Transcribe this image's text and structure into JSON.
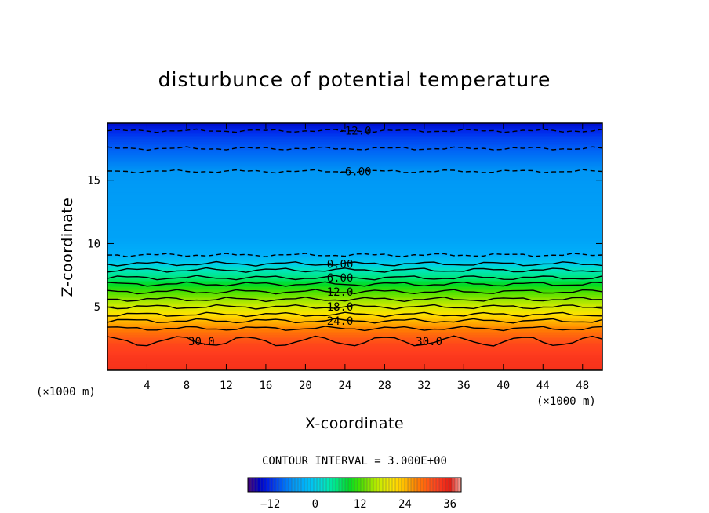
{
  "chart_data": {
    "type": "heatmap",
    "title": "disturbunce of potential temperature",
    "xlabel": "X-coordinate",
    "ylabel": "Z-coordinate",
    "x_unit": "(×1000 m)",
    "y_unit": "(×1000 m)",
    "xlim": [
      0,
      50
    ],
    "ylim": [
      0,
      19.5
    ],
    "x_ticks": [
      4,
      8,
      12,
      16,
      20,
      24,
      28,
      32,
      36,
      40,
      44,
      48
    ],
    "y_ticks": [
      5,
      10,
      15
    ],
    "contour_interval_text": "CONTOUR INTERVAL = 3.000E+00",
    "contour_interval": 3,
    "value_range": [
      -18,
      39
    ],
    "colorbar_ticks": [
      -12,
      0,
      12,
      24,
      36
    ],
    "contours": [
      {
        "value": -12,
        "label": "-12.0",
        "z": 18.9,
        "dashed": true
      },
      {
        "value": -9,
        "label": "",
        "z": 17.5,
        "dashed": true
      },
      {
        "value": -6,
        "label": "-6.00",
        "z": 15.7,
        "dashed": true
      },
      {
        "value": -3,
        "label": "",
        "z": 9.1,
        "dashed": true
      },
      {
        "value": 0,
        "label": "0.00",
        "z": 8.4,
        "dashed": false
      },
      {
        "value": 3,
        "label": "",
        "z": 7.9,
        "dashed": false
      },
      {
        "value": 6,
        "label": "6.00",
        "z": 7.3,
        "dashed": false
      },
      {
        "value": 9,
        "label": "",
        "z": 6.8,
        "dashed": false
      },
      {
        "value": 12,
        "label": "12.0",
        "z": 6.2,
        "dashed": false
      },
      {
        "value": 15,
        "label": "",
        "z": 5.6,
        "dashed": false
      },
      {
        "value": 18,
        "label": "18.0",
        "z": 5.0,
        "dashed": false
      },
      {
        "value": 21,
        "label": "",
        "z": 4.4,
        "dashed": false
      },
      {
        "value": 24,
        "label": "24.0",
        "z": 3.9,
        "dashed": false
      },
      {
        "value": 27,
        "label": "",
        "z": 3.3,
        "dashed": false
      },
      {
        "value": 30,
        "label": "30.0",
        "z": 2.3,
        "dashed": false
      }
    ],
    "field_profile": [
      {
        "z": 0.0,
        "value": 34
      },
      {
        "z": 1.0,
        "value": 33.5
      },
      {
        "z": 2.0,
        "value": 32
      },
      {
        "z": 2.8,
        "value": 29
      },
      {
        "z": 3.3,
        "value": 27
      },
      {
        "z": 3.9,
        "value": 24
      },
      {
        "z": 4.4,
        "value": 21
      },
      {
        "z": 5.0,
        "value": 18
      },
      {
        "z": 5.6,
        "value": 15
      },
      {
        "z": 6.2,
        "value": 12
      },
      {
        "z": 6.8,
        "value": 9
      },
      {
        "z": 7.3,
        "value": 6
      },
      {
        "z": 7.9,
        "value": 3
      },
      {
        "z": 8.4,
        "value": 0
      },
      {
        "z": 9.1,
        "value": -3
      },
      {
        "z": 10.5,
        "value": -4.5
      },
      {
        "z": 12.5,
        "value": -5
      },
      {
        "z": 14.5,
        "value": -5.5
      },
      {
        "z": 15.7,
        "value": -6
      },
      {
        "z": 16.6,
        "value": -7.5
      },
      {
        "z": 17.5,
        "value": -9
      },
      {
        "z": 18.3,
        "value": -10.5
      },
      {
        "z": 18.9,
        "value": -12
      },
      {
        "z": 19.5,
        "value": -14
      }
    ]
  }
}
